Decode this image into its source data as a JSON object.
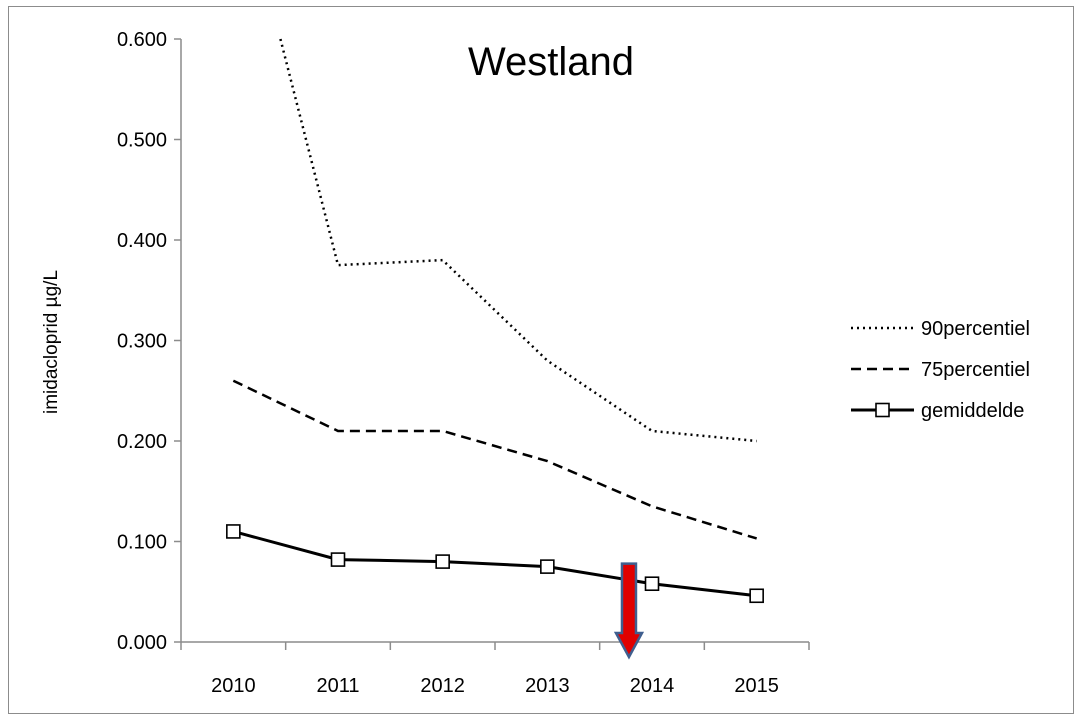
{
  "chart_data": {
    "type": "line",
    "title": "Westland",
    "xlabel": "",
    "ylabel": "imidacloprid µg/L",
    "categories": [
      "2010",
      "2011",
      "2012",
      "2013",
      "2014",
      "2015"
    ],
    "ylim": [
      0,
      0.6
    ],
    "yticks": [
      "0.000",
      "0.100",
      "0.200",
      "0.300",
      "0.400",
      "0.500",
      "0.600"
    ],
    "grid": false,
    "legend_position": "right",
    "series": [
      {
        "name": "90percentiel",
        "style": "dotted",
        "color": "#000000",
        "values": [
          0.6,
          0.375,
          0.38,
          0.28,
          0.21,
          0.2
        ],
        "clipped_start_fraction": 0.45
      },
      {
        "name": "75percentiel",
        "style": "dashed",
        "color": "#000000",
        "values": [
          0.26,
          0.21,
          0.21,
          0.18,
          0.135,
          0.103
        ]
      },
      {
        "name": "gemiddelde",
        "style": "solid-square-markers",
        "color": "#000000",
        "values": [
          0.11,
          0.082,
          0.08,
          0.075,
          0.058,
          0.046
        ]
      }
    ],
    "annotations": [
      {
        "type": "arrow-down",
        "x_between": [
          "2013",
          "2014"
        ],
        "x_fraction": 0.78,
        "from_y": 0.075,
        "to_y": 0.0,
        "fill": "#e00000",
        "stroke": "#3f5f8f"
      }
    ]
  }
}
